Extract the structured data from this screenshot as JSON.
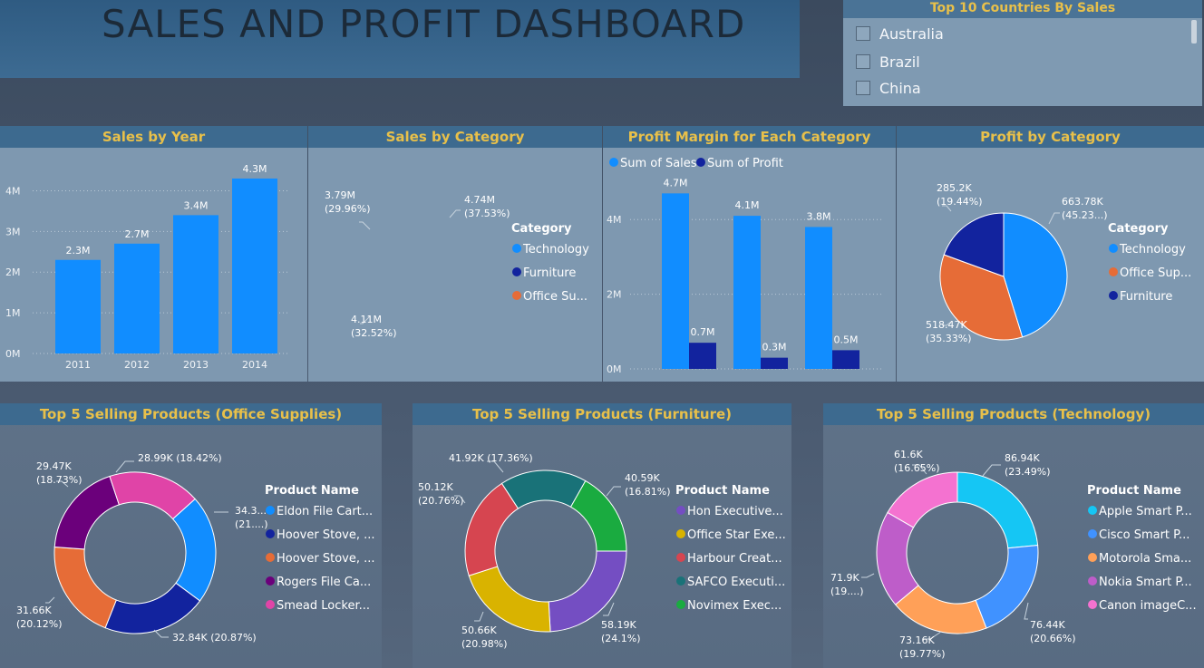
{
  "dashboard": {
    "title": "SALES AND PROFIT DASHBOARD"
  },
  "slicer": {
    "title": "Top 10 Countries By Sales",
    "items": [
      "Australia",
      "Brazil",
      "China"
    ]
  },
  "colors": {
    "blue": "#118dff",
    "navy": "#12239e",
    "orange": "#e66c37",
    "header_bg": "#3d6a8f",
    "header_text": "#e8c04a"
  },
  "chart_data": [
    {
      "type": "bar",
      "title": "Sales by Year",
      "categories": [
        "2011",
        "2012",
        "2013",
        "2014"
      ],
      "values": [
        2.3,
        2.7,
        3.4,
        4.3
      ],
      "data_labels": [
        "2.3M",
        "2.7M",
        "3.4M",
        "4.3M"
      ],
      "yticks": [
        "0M",
        "1M",
        "2M",
        "3M",
        "4M"
      ],
      "ylim": [
        0,
        4.5
      ],
      "grid": true,
      "color": "#118dff"
    },
    {
      "type": "pie",
      "title": "Sales by Category",
      "legend_title": "Category",
      "legend": [
        "Technology",
        "Furniture",
        "Office Su..."
      ],
      "slices": [
        {
          "name": "Technology",
          "value": 4.74,
          "label": "4.74M",
          "pct": "(37.53%)",
          "color": "#118dff"
        },
        {
          "name": "Furniture",
          "value": 4.11,
          "label": "4.11M",
          "pct": "(32.52%)",
          "color": "#12239e"
        },
        {
          "name": "Office Supplies",
          "value": 3.79,
          "label": "3.79M",
          "pct": "(29.96%)",
          "color": "#e66c37"
        }
      ]
    },
    {
      "type": "bar",
      "title": "Profit Margin for Each Category",
      "legend": [
        "Sum of Sales",
        "Sum of Profit"
      ],
      "series": [
        {
          "name": "Sum of Sales",
          "values": [
            4.7,
            4.1,
            3.8
          ],
          "labels": [
            "4.7M",
            "4.1M",
            "3.8M"
          ],
          "color": "#118dff"
        },
        {
          "name": "Sum of Profit",
          "values": [
            0.7,
            0.3,
            0.5
          ],
          "labels": [
            "0.7M",
            "0.3M",
            "0.5M"
          ],
          "color": "#12239e"
        }
      ],
      "yticks": [
        "0M",
        "2M",
        "4M"
      ],
      "ylim": [
        0,
        5
      ],
      "grid": true
    },
    {
      "type": "pie",
      "title": "Profit by Category",
      "legend_title": "Category",
      "legend": [
        "Technology",
        "Office Sup...",
        "Furniture"
      ],
      "slices": [
        {
          "name": "Technology",
          "value": 663.78,
          "label": "663.78K",
          "pct": "(45.23...)",
          "color": "#118dff"
        },
        {
          "name": "Office Supplies",
          "value": 518.47,
          "label": "518.47K",
          "pct": "(35.33%)",
          "color": "#e66c37"
        },
        {
          "name": "Furniture",
          "value": 285.2,
          "label": "285.2K",
          "pct": "(19.44%)",
          "color": "#12239e"
        }
      ]
    },
    {
      "type": "pie",
      "title": "Top 5 Selling Products (Office Supplies)",
      "legend_title": "Product Name",
      "legend": [
        "Eldon File Cart...",
        "Hoover Stove, ...",
        "Hoover Stove, ...",
        "Rogers File Ca...",
        "Smead Locker..."
      ],
      "slices": [
        {
          "name": "Eldon File Cart...",
          "value": 34.3,
          "label": "34.3...",
          "pct": "(21....)",
          "color": "#118dff"
        },
        {
          "name": "Hoover Stove, ...",
          "value": 32.84,
          "label": "32.84K (20.87%)",
          "pct": "",
          "color": "#12239e"
        },
        {
          "name": "Hoover Stove, ...",
          "value": 31.66,
          "label": "31.66K",
          "pct": "(20.12%)",
          "color": "#e66c37"
        },
        {
          "name": "Rogers File Ca...",
          "value": 29.47,
          "label": "29.47K",
          "pct": "(18.73%)",
          "color": "#6b007b"
        },
        {
          "name": "Smead Locker...",
          "value": 28.99,
          "label": "28.99K (18.42%)",
          "pct": "",
          "color": "#e044a7"
        }
      ]
    },
    {
      "type": "pie",
      "title": "Top 5 Selling Products (Furniture)",
      "legend_title": "Product Name",
      "legend": [
        "Hon Executive...",
        "Office Star Exe...",
        "Harbour Creat...",
        "SAFCO Executi...",
        "Novimex Exec..."
      ],
      "slices": [
        {
          "name": "Hon Executive...",
          "value": 58.19,
          "label": "58.19K",
          "pct": "(24.1%)",
          "color": "#744ec2"
        },
        {
          "name": "Office Star Exe...",
          "value": 50.66,
          "label": "50.66K",
          "pct": "(20.98%)",
          "color": "#d9b300"
        },
        {
          "name": "Harbour Creat...",
          "value": 50.12,
          "label": "50.12K",
          "pct": "(20.76%)",
          "color": "#d64550"
        },
        {
          "name": "SAFCO Executi...",
          "value": 41.92,
          "label": "41.92K (17.36%)",
          "pct": "",
          "color": "#197278"
        },
        {
          "name": "Novimex Exec...",
          "value": 40.59,
          "label": "40.59K",
          "pct": "(16.81%)",
          "color": "#1aab40"
        }
      ]
    },
    {
      "type": "pie",
      "title": "Top 5 Selling Products (Technology)",
      "legend_title": "Product Name",
      "legend": [
        "Apple Smart P...",
        "Cisco Smart P...",
        "Motorola Sma...",
        "Nokia Smart P...",
        "Canon imageC..."
      ],
      "slices": [
        {
          "name": "Apple Smart P...",
          "value": 86.94,
          "label": "86.94K",
          "pct": "(23.49%)",
          "color": "#15c6f4"
        },
        {
          "name": "Cisco Smart P...",
          "value": 76.44,
          "label": "76.44K",
          "pct": "(20.66%)",
          "color": "#4092ff"
        },
        {
          "name": "Motorola Sma...",
          "value": 73.16,
          "label": "73.16K",
          "pct": "(19.77%)",
          "color": "#ffa058"
        },
        {
          "name": "Nokia Smart P...",
          "value": 71.9,
          "label": "71.9K",
          "pct": "(19....)",
          "color": "#be5dc9"
        },
        {
          "name": "Canon imageC...",
          "value": 61.6,
          "label": "61.6K",
          "pct": "(16.65%)",
          "color": "#f472d0"
        }
      ]
    }
  ]
}
